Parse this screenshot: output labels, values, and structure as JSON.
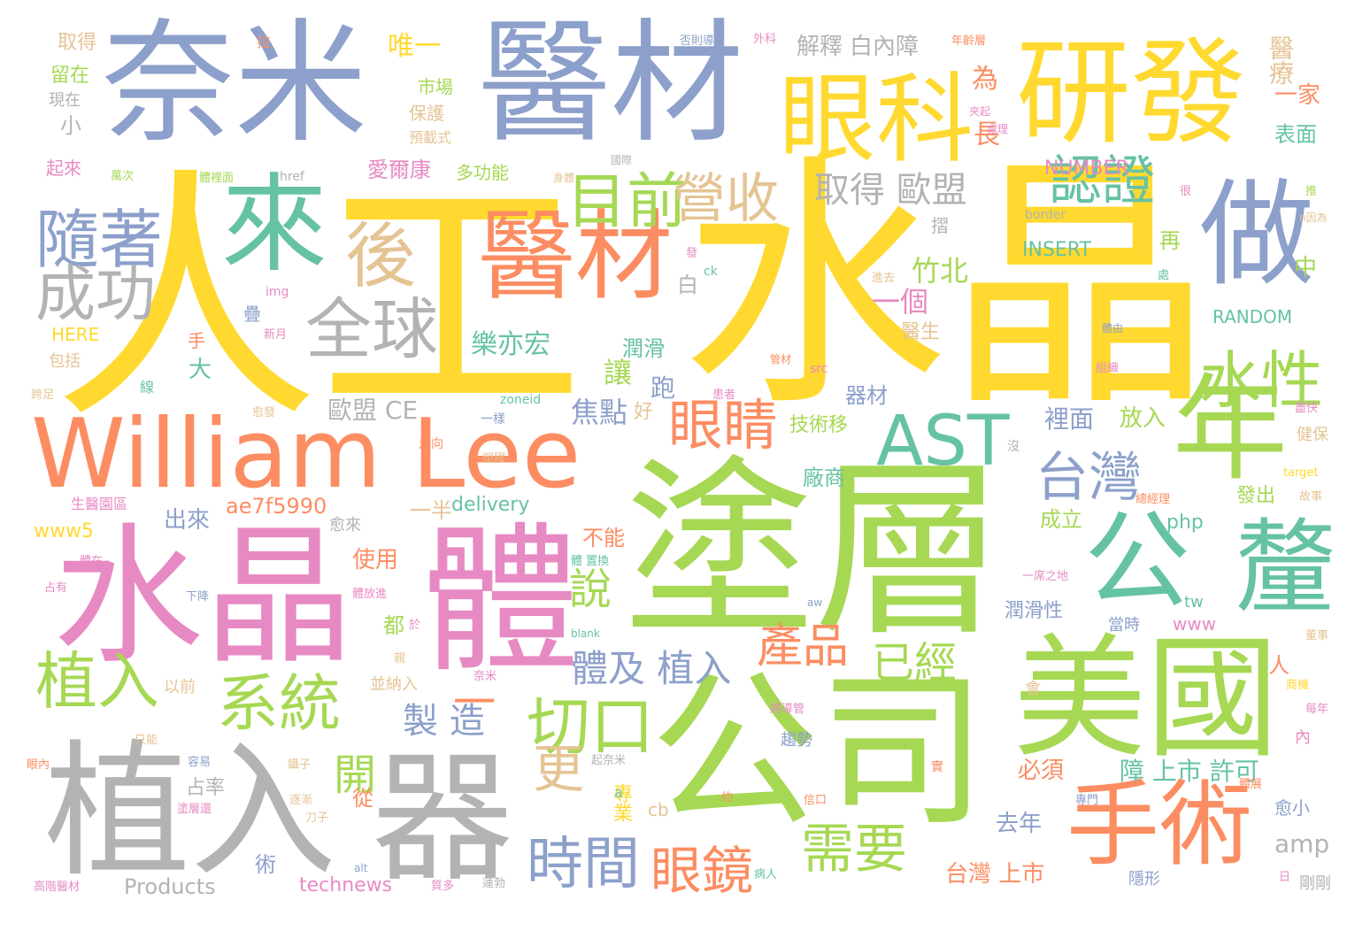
{
  "palette": {
    "yellow": "#ffd92f",
    "green": "#a6d854",
    "orange": "#fc8d62",
    "blue": "#8da0cb",
    "pink": "#e78ac3",
    "teal": "#66c2a5",
    "gray": "#b3b3b3",
    "tan": "#e5c494"
  },
  "words": [
    {
      "text": "人工",
      "color": "#ffd92f"
    },
    {
      "text": "水晶",
      "color": "#ffd92f"
    },
    {
      "text": "塗層",
      "color": "#a6d854"
    },
    {
      "text": "公司",
      "color": "#a6d854"
    },
    {
      "text": "奈米",
      "color": "#8da0cb"
    },
    {
      "text": "醫材",
      "color": "#8da0cb"
    },
    {
      "text": "William Lee",
      "color": "#fc8d62"
    },
    {
      "text": "水晶",
      "color": "#e78ac3"
    },
    {
      "text": "體",
      "color": "#e78ac3"
    },
    {
      "text": "植入",
      "color": "#b3b3b3"
    },
    {
      "text": "器",
      "color": "#b3b3b3"
    },
    {
      "text": "美國",
      "color": "#a6d854"
    },
    {
      "text": "研發",
      "color": "#ffd92f"
    },
    {
      "text": "眼科",
      "color": "#ffd92f"
    },
    {
      "text": "醫材",
      "color": "#fc8d62"
    },
    {
      "text": "來",
      "color": "#66c2a5"
    },
    {
      "text": "做",
      "color": "#8da0cb"
    },
    {
      "text": "年",
      "color": "#a6d854"
    },
    {
      "text": "公",
      "color": "#66c2a5"
    },
    {
      "text": "釐",
      "color": "#66c2a5"
    },
    {
      "text": "手術",
      "color": "#fc8d62"
    },
    {
      "text": "AST",
      "color": "#66c2a5"
    },
    {
      "text": "後",
      "color": "#e5c494"
    },
    {
      "text": "全球",
      "color": "#b3b3b3"
    },
    {
      "text": "隨著",
      "color": "#8da0cb"
    },
    {
      "text": "成功",
      "color": "#b3b3b3"
    },
    {
      "text": "目前",
      "color": "#a6d854"
    },
    {
      "text": "營收",
      "color": "#e5c494"
    },
    {
      "text": "認證",
      "color": "#66c2a5"
    },
    {
      "text": "水性",
      "color": "#a6d854"
    },
    {
      "text": "眼睛",
      "color": "#fc8d62"
    },
    {
      "text": "台灣",
      "color": "#8da0cb"
    },
    {
      "text": "植入",
      "color": "#a6d854"
    },
    {
      "text": "系統",
      "color": "#a6d854"
    },
    {
      "text": "切口",
      "color": "#a6d854"
    },
    {
      "text": "一",
      "color": "#fc8d62"
    },
    {
      "text": "時間",
      "color": "#8da0cb"
    },
    {
      "text": "眼鏡",
      "color": "#fc8d62"
    },
    {
      "text": "需要",
      "color": "#a6d854"
    },
    {
      "text": "更",
      "color": "#e5c494"
    },
    {
      "text": "產品",
      "color": "#fc8d62"
    },
    {
      "text": "已經",
      "color": "#a6d854"
    },
    {
      "text": "體及 植入",
      "color": "#8da0cb"
    },
    {
      "text": "說",
      "color": "#a6d854"
    },
    {
      "text": "開",
      "color": "#a6d854"
    },
    {
      "text": "製 造",
      "color": "#8da0cb"
    },
    {
      "text": "取得 歐盟",
      "color": "#b3b3b3"
    },
    {
      "text": "樂亦宏",
      "color": "#66c2a5"
    },
    {
      "text": "竹北",
      "color": "#a6d854"
    },
    {
      "text": "一個",
      "color": "#e78ac3"
    },
    {
      "text": "焦點",
      "color": "#8da0cb"
    },
    {
      "text": "歐盟 CE",
      "color": "#b3b3b3"
    },
    {
      "text": "醫療",
      "color": "#e5c494"
    },
    {
      "text": "一家",
      "color": "#fc8d62"
    },
    {
      "text": "表面",
      "color": "#66c2a5"
    },
    {
      "text": "NUMBER",
      "color": "#e78ac3"
    },
    {
      "text": "INSERT",
      "color": "#66c2a5"
    },
    {
      "text": "RANDOM",
      "color": "#66c2a5"
    },
    {
      "text": "解釋",
      "color": "#b3b3b3"
    },
    {
      "text": "白內障",
      "color": "#b3b3b3"
    },
    {
      "text": "唯一",
      "color": "#ffd92f"
    },
    {
      "text": "愛爾康",
      "color": "#e78ac3"
    },
    {
      "text": "多功能",
      "color": "#a6d854"
    },
    {
      "text": "技術移",
      "color": "#a6d854"
    },
    {
      "text": "廠商",
      "color": "#66c2a5"
    },
    {
      "text": "潤滑",
      "color": "#66c2a5"
    },
    {
      "text": "器材",
      "color": "#8da0cb"
    },
    {
      "text": "裡面",
      "color": "#8da0cb"
    },
    {
      "text": "放入",
      "color": "#a6d854"
    },
    {
      "text": "成立",
      "color": "#a6d854"
    },
    {
      "text": "發出",
      "color": "#a6d854"
    },
    {
      "text": "ae7f5990",
      "color": "#fc8d62"
    },
    {
      "text": "delivery",
      "color": "#66c2a5"
    },
    {
      "text": "一半",
      "color": "#e5c494"
    },
    {
      "text": "www5",
      "color": "#ffd92f"
    },
    {
      "text": "出來",
      "color": "#8da0cb"
    },
    {
      "text": "使用",
      "color": "#fc8d62"
    },
    {
      "text": "不能",
      "color": "#fc8d62"
    },
    {
      "text": "php",
      "color": "#66c2a5"
    },
    {
      "text": "潤滑性",
      "color": "#8da0cb"
    },
    {
      "text": "www",
      "color": "#e78ac3"
    },
    {
      "text": "障 上市 許可",
      "color": "#66c2a5"
    },
    {
      "text": "必須",
      "color": "#fc8d62"
    },
    {
      "text": "去年",
      "color": "#8da0cb"
    },
    {
      "text": "台灣 上市",
      "color": "#fc8d62"
    },
    {
      "text": "amp",
      "color": "#b3b3b3"
    },
    {
      "text": "Products",
      "color": "#b3b3b3"
    },
    {
      "text": "technews",
      "color": "#e78ac3"
    },
    {
      "text": "HERE",
      "color": "#ffd92f"
    },
    {
      "text": "生醫園區",
      "color": "#e78ac3"
    },
    {
      "text": "專業",
      "color": "#ffd92f"
    },
    {
      "text": "占率",
      "color": "#b3b3b3"
    },
    {
      "text": "取得",
      "color": "#e5c494"
    },
    {
      "text": "留在",
      "color": "#a6d854"
    },
    {
      "text": "現在",
      "color": "#b3b3b3"
    },
    {
      "text": "起來",
      "color": "#e78ac3"
    },
    {
      "text": "市場",
      "color": "#a6d854"
    },
    {
      "text": "保護",
      "color": "#e5c494"
    },
    {
      "text": "預載式",
      "color": "#e5c494"
    },
    {
      "text": "為",
      "color": "#fc8d62"
    },
    {
      "text": "長",
      "color": "#fc8d62"
    },
    {
      "text": "小",
      "color": "#b3b3b3"
    },
    {
      "text": "讓",
      "color": "#a6d854"
    },
    {
      "text": "跑",
      "color": "#8da0cb"
    },
    {
      "text": "大",
      "color": "#66c2a5"
    },
    {
      "text": "手",
      "color": "#fc8d62"
    },
    {
      "text": "白",
      "color": "#b3b3b3"
    },
    {
      "text": "好",
      "color": "#e5c494"
    },
    {
      "text": "中",
      "color": "#a6d854"
    },
    {
      "text": "再",
      "color": "#a6d854"
    },
    {
      "text": "人",
      "color": "#fc8d62"
    },
    {
      "text": "會",
      "color": "#e5c494"
    },
    {
      "text": "從",
      "color": "#fc8d62"
    },
    {
      "text": "都",
      "color": "#a6d854"
    },
    {
      "text": "術",
      "color": "#8da0cb"
    },
    {
      "text": "內",
      "color": "#e78ac3"
    },
    {
      "text": "cb",
      "color": "#e5c494"
    },
    {
      "text": "a",
      "color": "#66c2a5"
    },
    {
      "text": "tw",
      "color": "#66c2a5"
    },
    {
      "text": "當時",
      "color": "#8da0cb"
    },
    {
      "text": "愈小",
      "color": "#8da0cb"
    },
    {
      "text": "隱形",
      "color": "#8da0cb"
    },
    {
      "text": "剛剛",
      "color": "#b3b3b3"
    },
    {
      "text": "包括",
      "color": "#e5c494"
    },
    {
      "text": "摺",
      "color": "#b3b3b3"
    },
    {
      "text": "疊",
      "color": "#8da0cb"
    },
    {
      "text": "醫生",
      "color": "#e5c494"
    },
    {
      "text": "愈來",
      "color": "#b3b3b3"
    },
    {
      "text": "以前",
      "color": "#e5c494"
    },
    {
      "text": "並納入",
      "color": "#e5c494"
    },
    {
      "text": "趨勢",
      "color": "#8da0cb"
    },
    {
      "text": "健保",
      "color": "#e5c494"
    },
    {
      "text": "border",
      "color": "#b3b3b3"
    },
    {
      "text": "href",
      "color": "#b3b3b3"
    },
    {
      "text": "img",
      "color": "#e78ac3"
    },
    {
      "text": "src",
      "color": "#e78ac3"
    },
    {
      "text": "zoneid",
      "color": "#66c2a5"
    },
    {
      "text": "blank",
      "color": "#66c2a5"
    },
    {
      "text": "aw",
      "color": "#8da0cb"
    },
    {
      "text": "alt",
      "color": "#8da0cb"
    },
    {
      "text": "target",
      "color": "#ffd92f"
    },
    {
      "text": "ck",
      "color": "#66c2a5"
    },
    {
      "text": "拉",
      "color": "#fc8d62"
    },
    {
      "text": "否則導",
      "color": "#8da0cb"
    },
    {
      "text": "外科",
      "color": "#e78ac3"
    },
    {
      "text": "年齡層",
      "color": "#fc8d62"
    },
    {
      "text": "夾起",
      "color": "#e78ac3"
    },
    {
      "text": "處理",
      "color": "#e78ac3"
    },
    {
      "text": "國際",
      "color": "#b3b3b3"
    },
    {
      "text": "身體",
      "color": "#e5c494"
    },
    {
      "text": "萬次",
      "color": "#a6d854"
    },
    {
      "text": "體裡面",
      "color": "#a6d854"
    },
    {
      "text": "n因為",
      "color": "#e5c494"
    },
    {
      "text": "很",
      "color": "#e78ac3"
    },
    {
      "text": "推",
      "color": "#a6d854"
    },
    {
      "text": "處",
      "color": "#66c2a5"
    },
    {
      "text": "發",
      "color": "#e78ac3"
    },
    {
      "text": "進去",
      "color": "#e5c494"
    },
    {
      "text": "新月",
      "color": "#e78ac3"
    },
    {
      "text": "體由",
      "color": "#8da0cb"
    },
    {
      "text": "管材",
      "color": "#fc8d62"
    },
    {
      "text": "組織",
      "color": "#e78ac3"
    },
    {
      "text": "患者",
      "color": "#e78ac3"
    },
    {
      "text": "線",
      "color": "#66c2a5"
    },
    {
      "text": "跨足",
      "color": "#e5c494"
    },
    {
      "text": "愈發",
      "color": "#e5c494"
    },
    {
      "text": "盡快",
      "color": "#e78ac3"
    },
    {
      "text": "一樣",
      "color": "#8da0cb"
    },
    {
      "text": "走向",
      "color": "#fc8d62"
    },
    {
      "text": "塑膠",
      "color": "#e5c494"
    },
    {
      "text": "沒",
      "color": "#b3b3b3"
    },
    {
      "text": "總經理",
      "color": "#fc8d62"
    },
    {
      "text": "故事",
      "color": "#e5c494"
    },
    {
      "text": "體 置換",
      "color": "#66c2a5"
    },
    {
      "text": "體在",
      "color": "#e78ac3"
    },
    {
      "text": "占有",
      "color": "#e78ac3"
    },
    {
      "text": "下降",
      "color": "#8da0cb"
    },
    {
      "text": "體放進",
      "color": "#e78ac3"
    },
    {
      "text": "一席之地",
      "color": "#e78ac3"
    },
    {
      "text": "董事",
      "color": "#e5c494"
    },
    {
      "text": "商機",
      "color": "#ffd92f"
    },
    {
      "text": "每年",
      "color": "#e78ac3"
    },
    {
      "text": "親",
      "color": "#e5c494"
    },
    {
      "text": "於",
      "color": "#e78ac3"
    },
    {
      "text": "奈米",
      "color": "#e78ac3"
    },
    {
      "text": "將導管",
      "color": "#e78ac3"
    },
    {
      "text": "只能",
      "color": "#e5c494"
    },
    {
      "text": "眼內",
      "color": "#fc8d62"
    },
    {
      "text": "容易",
      "color": "#8da0cb"
    },
    {
      "text": "塗層還",
      "color": "#e78ac3"
    },
    {
      "text": "逐漸",
      "color": "#e5c494"
    },
    {
      "text": "刀子",
      "color": "#e5c494"
    },
    {
      "text": "鑷子",
      "color": "#e5c494"
    },
    {
      "text": "起奈米",
      "color": "#b3b3b3"
    },
    {
      "text": "實",
      "color": "#fc8d62"
    },
    {
      "text": "約",
      "color": "#fc8d62"
    },
    {
      "text": "信口",
      "color": "#fc8d62"
    },
    {
      "text": "專門",
      "color": "#8da0cb"
    },
    {
      "text": "體展",
      "color": "#fc8d62"
    },
    {
      "text": "日",
      "color": "#e78ac3"
    },
    {
      "text": "病人",
      "color": "#66c2a5"
    },
    {
      "text": "蓮勃",
      "color": "#b3b3b3"
    },
    {
      "text": "質多",
      "color": "#e78ac3"
    },
    {
      "text": "高階醫材",
      "color": "#e78ac3"
    }
  ]
}
